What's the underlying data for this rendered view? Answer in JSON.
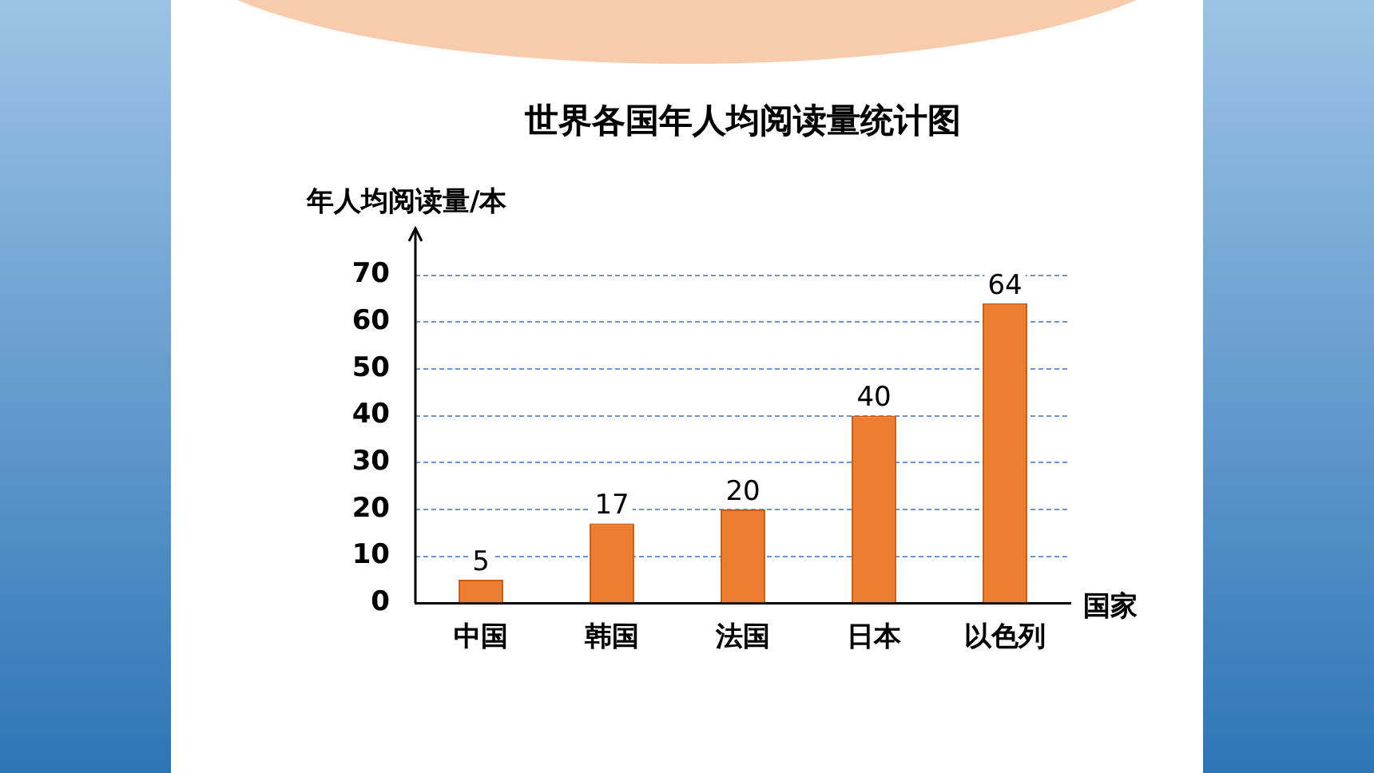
{
  "chart_data": {
    "type": "bar",
    "title": "世界各国年人均阅读量统计图",
    "ylabel": "年人均阅读量/本",
    "xlabel": "国家",
    "categories": [
      "中国",
      "韩国",
      "法国",
      "日本",
      "以色列"
    ],
    "values": [
      5,
      17,
      20,
      40,
      64
    ],
    "color": "#ed7d31",
    "ylim": [
      0,
      80
    ],
    "yticks": [
      0,
      10,
      20,
      30,
      40,
      50,
      60,
      70
    ],
    "grid": "y",
    "data_labels": true,
    "legend": false
  }
}
